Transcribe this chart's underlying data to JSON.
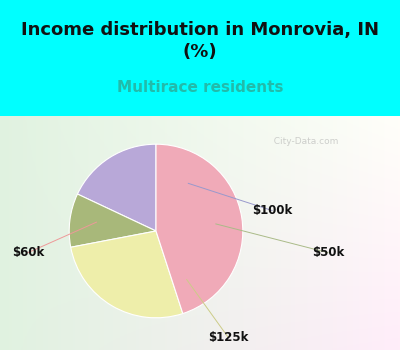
{
  "title": "Income distribution in Monrovia, IN\n(%)",
  "subtitle": "Multirace residents",
  "slices": [
    {
      "label": "$100k",
      "value": 18,
      "color": "#b8a8d8"
    },
    {
      "label": "$50k",
      "value": 10,
      "color": "#a8b87a"
    },
    {
      "label": "$125k",
      "value": 27,
      "color": "#eeeeaa"
    },
    {
      "label": "$60k",
      "value": 45,
      "color": "#f0aab8"
    }
  ],
  "start_angle": 90,
  "title_fontsize": 13,
  "subtitle_fontsize": 11,
  "subtitle_color": "#22bbaa",
  "title_color": "#111111",
  "bg_cyan": "#00ffff",
  "label_fontsize": 8.5,
  "label_color": "#111111",
  "line_color_100k": "#8888cc",
  "line_color_50k": "#99bb88",
  "line_color_125k": "#cccc88",
  "line_color_60k": "#ee9999"
}
